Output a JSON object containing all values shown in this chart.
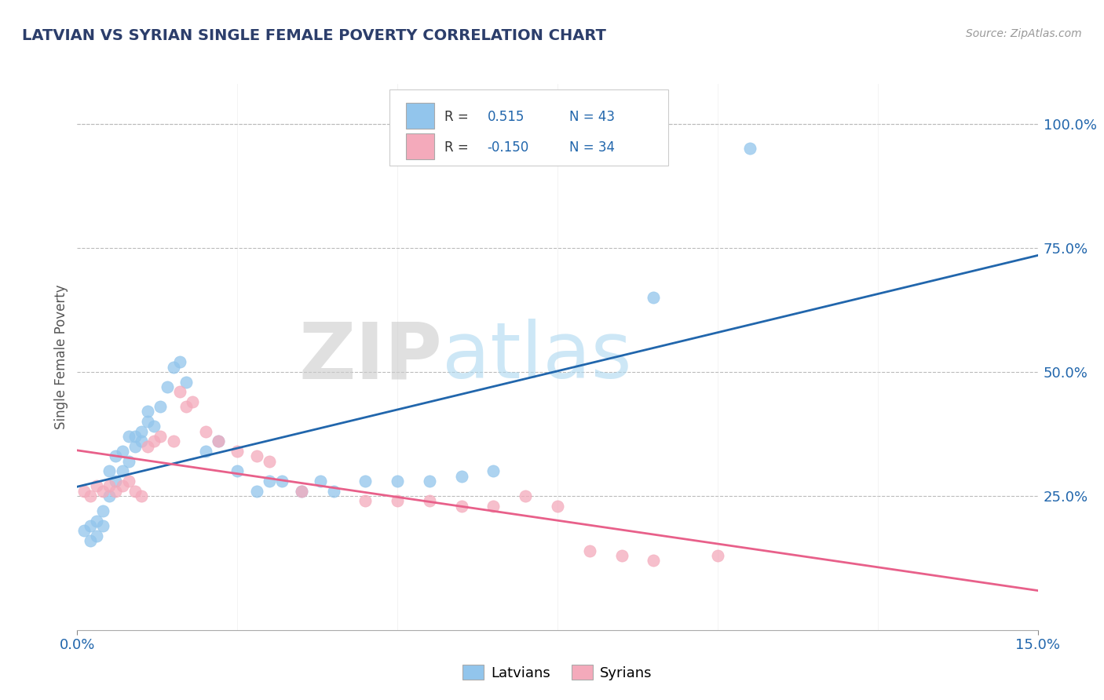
{
  "title": "LATVIAN VS SYRIAN SINGLE FEMALE POVERTY CORRELATION CHART",
  "source": "Source: ZipAtlas.com",
  "ylabel": "Single Female Poverty",
  "xmin": 0.0,
  "xmax": 0.15,
  "ymin": -0.02,
  "ymax": 1.08,
  "latvian_color": "#92C5EC",
  "syrian_color": "#F4AABB",
  "line_latvian_color": "#2166AC",
  "line_syrian_color": "#E8608A",
  "R_latvian": 0.515,
  "N_latvian": 43,
  "R_syrian": -0.15,
  "N_syrian": 34,
  "background_color": "#FFFFFF",
  "grid_color": "#CCCCCC",
  "latvian_x": [
    0.001,
    0.002,
    0.002,
    0.003,
    0.003,
    0.004,
    0.004,
    0.005,
    0.005,
    0.006,
    0.006,
    0.007,
    0.007,
    0.008,
    0.008,
    0.009,
    0.009,
    0.01,
    0.01,
    0.011,
    0.011,
    0.012,
    0.013,
    0.014,
    0.015,
    0.016,
    0.017,
    0.02,
    0.022,
    0.025,
    0.028,
    0.03,
    0.032,
    0.035,
    0.038,
    0.04,
    0.045,
    0.05,
    0.055,
    0.06,
    0.065,
    0.09,
    0.105
  ],
  "latvian_y": [
    0.18,
    0.19,
    0.16,
    0.2,
    0.17,
    0.22,
    0.19,
    0.3,
    0.25,
    0.33,
    0.28,
    0.34,
    0.3,
    0.37,
    0.32,
    0.37,
    0.35,
    0.38,
    0.36,
    0.4,
    0.42,
    0.39,
    0.43,
    0.47,
    0.51,
    0.52,
    0.48,
    0.34,
    0.36,
    0.3,
    0.26,
    0.28,
    0.28,
    0.26,
    0.28,
    0.26,
    0.28,
    0.28,
    0.28,
    0.29,
    0.3,
    0.65,
    0.95
  ],
  "syrian_x": [
    0.001,
    0.002,
    0.003,
    0.004,
    0.005,
    0.006,
    0.007,
    0.008,
    0.009,
    0.01,
    0.011,
    0.012,
    0.013,
    0.015,
    0.016,
    0.017,
    0.018,
    0.02,
    0.022,
    0.025,
    0.028,
    0.03,
    0.035,
    0.045,
    0.05,
    0.055,
    0.06,
    0.065,
    0.07,
    0.075,
    0.08,
    0.085,
    0.09,
    0.1
  ],
  "syrian_y": [
    0.26,
    0.25,
    0.27,
    0.26,
    0.27,
    0.26,
    0.27,
    0.28,
    0.26,
    0.25,
    0.35,
    0.36,
    0.37,
    0.36,
    0.46,
    0.43,
    0.44,
    0.38,
    0.36,
    0.34,
    0.33,
    0.32,
    0.26,
    0.24,
    0.24,
    0.24,
    0.23,
    0.23,
    0.25,
    0.23,
    0.14,
    0.13,
    0.12,
    0.13
  ]
}
